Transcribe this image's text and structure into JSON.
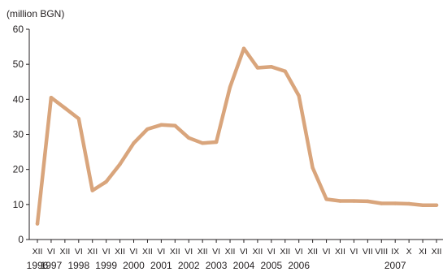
{
  "chart_data": {
    "type": "line",
    "title": "",
    "ylabel": "(million BGN)",
    "xlabel": "",
    "ylim": [
      0,
      60
    ],
    "yticks": [
      0,
      10,
      20,
      30,
      40,
      50,
      60
    ],
    "grid": false,
    "line_color": "#d9a57c",
    "x_month_labels": [
      "XII",
      "VI",
      "XII",
      "VI",
      "XII",
      "VI",
      "XII",
      "VI",
      "XII",
      "VI",
      "XII",
      "VI",
      "XII",
      "VI",
      "XII",
      "VI",
      "XII",
      "VI",
      "XII",
      "VI",
      "XII",
      "VI",
      "XII",
      "VI",
      "VII",
      "VIII",
      "IX",
      "X",
      "XI",
      "XII"
    ],
    "x_year_labels": [
      "1996",
      "1997",
      "1998",
      "1999",
      "2000",
      "2001",
      "2002",
      "2003",
      "2004",
      "2005",
      "2006",
      "2007"
    ],
    "year_label_month_index": [
      0,
      1,
      3,
      5,
      7,
      9,
      11,
      13,
      15,
      17,
      19,
      26
    ],
    "series": [
      {
        "values": [
          4.5,
          40.5,
          37.5,
          34.5,
          14,
          16.5,
          21.5,
          27.5,
          31.5,
          32.7,
          32.5,
          29,
          27.5,
          27.8,
          43.5,
          54.5,
          49,
          49.3,
          48,
          41,
          20.5,
          11.5,
          11,
          11,
          10.9,
          10.3,
          10.3,
          10.2,
          9.8,
          9.8
        ]
      }
    ]
  }
}
